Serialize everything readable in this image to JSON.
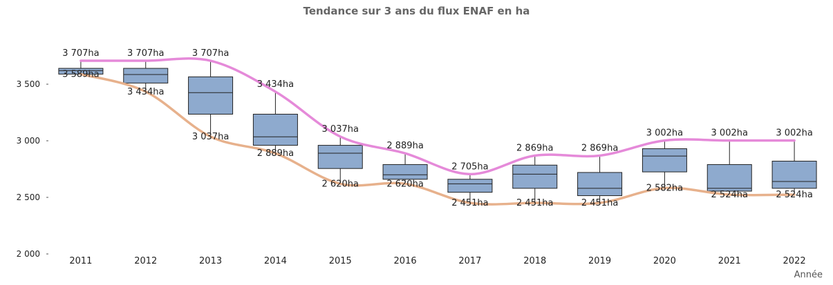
{
  "chart_data": {
    "type": "boxplot",
    "title": "Tendance sur 3 ans du flux ENAF en ha",
    "xlabel": "Année",
    "ylabel": "",
    "ylim": [
      2000,
      4000
    ],
    "yticks": [
      {
        "value": 2000,
        "label": "2 000"
      },
      {
        "value": 2500,
        "label": "2 500"
      },
      {
        "value": 3000,
        "label": "3 000"
      },
      {
        "value": 3500,
        "label": "3 500"
      }
    ],
    "grid": false,
    "categories": [
      "2011",
      "2012",
      "2013",
      "2014",
      "2015",
      "2016",
      "2017",
      "2018",
      "2019",
      "2020",
      "2021",
      "2022"
    ],
    "boxes": [
      {
        "whisker_low": 3589,
        "q1": 3589,
        "median": 3620,
        "q3": 3640,
        "whisker_high": 3707
      },
      {
        "whisker_low": 3434,
        "q1": 3510,
        "median": 3585,
        "q3": 3640,
        "whisker_high": 3707
      },
      {
        "whisker_low": 3037,
        "q1": 3235,
        "median": 3425,
        "q3": 3565,
        "whisker_high": 3707
      },
      {
        "whisker_low": 2889,
        "q1": 2960,
        "median": 3035,
        "q3": 3235,
        "whisker_high": 3434
      },
      {
        "whisker_low": 2620,
        "q1": 2755,
        "median": 2890,
        "q3": 2960,
        "whisker_high": 3037
      },
      {
        "whisker_low": 2620,
        "q1": 2660,
        "median": 2700,
        "q3": 2790,
        "whisker_high": 2889
      },
      {
        "whisker_low": 2451,
        "q1": 2545,
        "median": 2620,
        "q3": 2660,
        "whisker_high": 2705
      },
      {
        "whisker_low": 2451,
        "q1": 2580,
        "median": 2705,
        "q3": 2785,
        "whisker_high": 2869
      },
      {
        "whisker_low": 2451,
        "q1": 2515,
        "median": 2580,
        "q3": 2720,
        "whisker_high": 2869
      },
      {
        "whisker_low": 2582,
        "q1": 2725,
        "median": 2865,
        "q3": 2930,
        "whisker_high": 3002
      },
      {
        "whisker_low": 2524,
        "q1": 2555,
        "median": 2580,
        "q3": 2790,
        "whisker_high": 3002
      },
      {
        "whisker_low": 2524,
        "q1": 2580,
        "median": 2640,
        "q3": 2820,
        "whisker_high": 3002
      }
    ],
    "max_labels": [
      "3 707ha",
      "3 707ha",
      "3 707ha",
      "3 434ha",
      "3 037ha",
      "2 889ha",
      "2 705ha",
      "2 869ha",
      "2 869ha",
      "3 002ha",
      "3 002ha",
      "3 002ha"
    ],
    "min_labels": [
      "3 589ha",
      "3 434ha",
      "3 037ha",
      "2 889ha",
      "2 620ha",
      "2 620ha",
      "2 451ha",
      "2 451ha",
      "2 451ha",
      "2 582ha",
      "2 524ha",
      "2 524ha"
    ],
    "trend_lines": [
      {
        "values": [
          3707,
          3707,
          3707,
          3434,
          3037,
          2889,
          2705,
          2869,
          2869,
          3002,
          3002,
          3002
        ],
        "color": "#e58ad9"
      },
      {
        "values": [
          3589,
          3434,
          3037,
          2889,
          2620,
          2620,
          2451,
          2451,
          2451,
          2582,
          2524,
          2524
        ],
        "color": "#e7b18c"
      }
    ],
    "box_fill": "#8eaace",
    "box_stroke": "#222222",
    "axis_color": "#555555",
    "text_color": "#222222"
  }
}
